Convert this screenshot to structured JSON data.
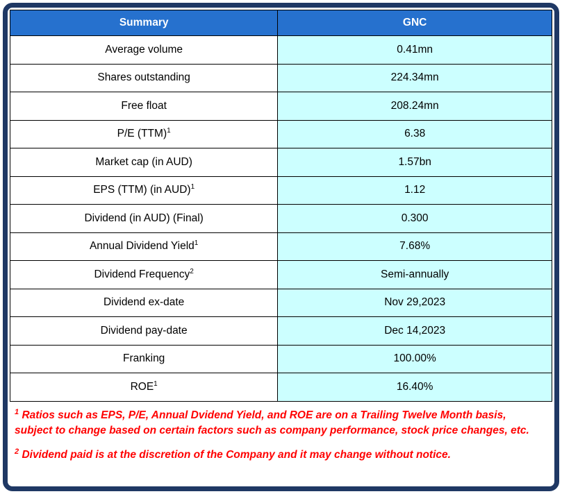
{
  "table": {
    "headers": [
      "Summary",
      "GNC"
    ],
    "rows": [
      {
        "label": "Average volume",
        "sup": "",
        "value": "0.41mn"
      },
      {
        "label": "Shares outstanding",
        "sup": "",
        "value": "224.34mn"
      },
      {
        "label": "Free float",
        "sup": "",
        "value": "208.24mn"
      },
      {
        "label": "P/E (TTM)",
        "sup": "1",
        "value": "6.38"
      },
      {
        "label": "Market cap (in AUD)",
        "sup": "",
        "value": "1.57bn"
      },
      {
        "label": "EPS (TTM) (in AUD)",
        "sup": "1",
        "value": "1.12"
      },
      {
        "label": "Dividend (in AUD) (Final)",
        "sup": "",
        "value": "0.300"
      },
      {
        "label": "Annual Dividend Yield",
        "sup": "1",
        "value": "7.68%"
      },
      {
        "label": "Dividend Frequency",
        "sup": "2",
        "value": "Semi-annually"
      },
      {
        "label": "Dividend ex-date",
        "sup": "",
        "value": "Nov 29,2023"
      },
      {
        "label": "Dividend pay-date",
        "sup": "",
        "value": "Dec 14,2023"
      },
      {
        "label": "Franking",
        "sup": "",
        "value": "100.00%"
      },
      {
        "label": "ROE",
        "sup": "1",
        "value": "16.40%"
      }
    ]
  },
  "footnotes": [
    {
      "sup": "1",
      "text": "Ratios such as EPS, P/E, Annual Dvidend Yield, and ROE are on a Trailing Twelve Month basis, subject to change based on certain factors such as company performance, stock price changes, etc."
    },
    {
      "sup": "2",
      "text": "Dividend paid is at the discretion of the Company and it may change without notice."
    }
  ],
  "colors": {
    "frame_border": "#1f3864",
    "header_bg": "#2671ce",
    "value_bg": "#ccffff",
    "footnote_text": "#ff0000"
  }
}
